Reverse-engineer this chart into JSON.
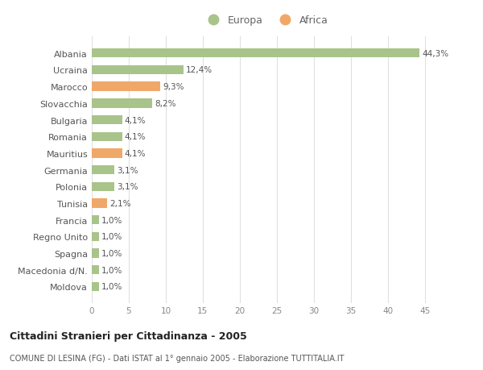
{
  "categories": [
    "Albania",
    "Ucraina",
    "Marocco",
    "Slovacchia",
    "Bulgaria",
    "Romania",
    "Mauritius",
    "Germania",
    "Polonia",
    "Tunisia",
    "Francia",
    "Regno Unito",
    "Spagna",
    "Macedonia d/N.",
    "Moldova"
  ],
  "values": [
    44.3,
    12.4,
    9.3,
    8.2,
    4.1,
    4.1,
    4.1,
    3.1,
    3.1,
    2.1,
    1.0,
    1.0,
    1.0,
    1.0,
    1.0
  ],
  "continents": [
    "Europa",
    "Europa",
    "Africa",
    "Europa",
    "Europa",
    "Europa",
    "Africa",
    "Europa",
    "Europa",
    "Africa",
    "Europa",
    "Europa",
    "Europa",
    "Europa",
    "Europa"
  ],
  "labels": [
    "44,3%",
    "12,4%",
    "9,3%",
    "8,2%",
    "4,1%",
    "4,1%",
    "4,1%",
    "3,1%",
    "3,1%",
    "2,1%",
    "1,0%",
    "1,0%",
    "1,0%",
    "1,0%",
    "1,0%"
  ],
  "color_europa": "#a8c48a",
  "color_africa": "#f0a868",
  "background_color": "#ffffff",
  "grid_color": "#e0e0e0",
  "title": "Cittadini Stranieri per Cittadinanza - 2005",
  "subtitle": "COMUNE DI LESINA (FG) - Dati ISTAT al 1° gennaio 2005 - Elaborazione TUTTITALIA.IT",
  "xlim": [
    0,
    47
  ],
  "xticks": [
    0,
    5,
    10,
    15,
    20,
    25,
    30,
    35,
    40,
    45
  ],
  "legend_europa": "Europa",
  "legend_africa": "Africa"
}
